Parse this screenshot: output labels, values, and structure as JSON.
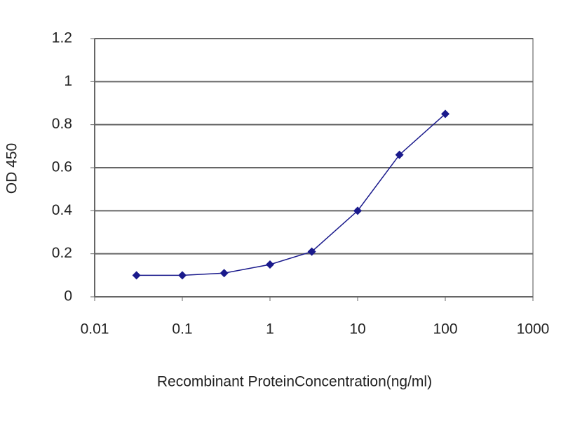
{
  "chart_data": {
    "type": "line",
    "x": [
      0.03,
      0.1,
      0.3,
      1,
      3,
      10,
      30,
      100
    ],
    "values": [
      0.1,
      0.1,
      0.11,
      0.15,
      0.21,
      0.4,
      0.66,
      0.85
    ],
    "color": "#1a1a8c",
    "xlabel": "Recombinant ProteinConcentration(ng/ml)",
    "ylabel": "OD 450",
    "xscale": "log",
    "xlim": [
      0.01,
      1000
    ],
    "xticks": [
      0.01,
      0.1,
      1,
      10,
      100,
      1000
    ],
    "ylim": [
      0,
      1.2
    ],
    "yticks": [
      0,
      0.2,
      0.4,
      0.6,
      0.8,
      1,
      1.2
    ],
    "grid": true
  }
}
